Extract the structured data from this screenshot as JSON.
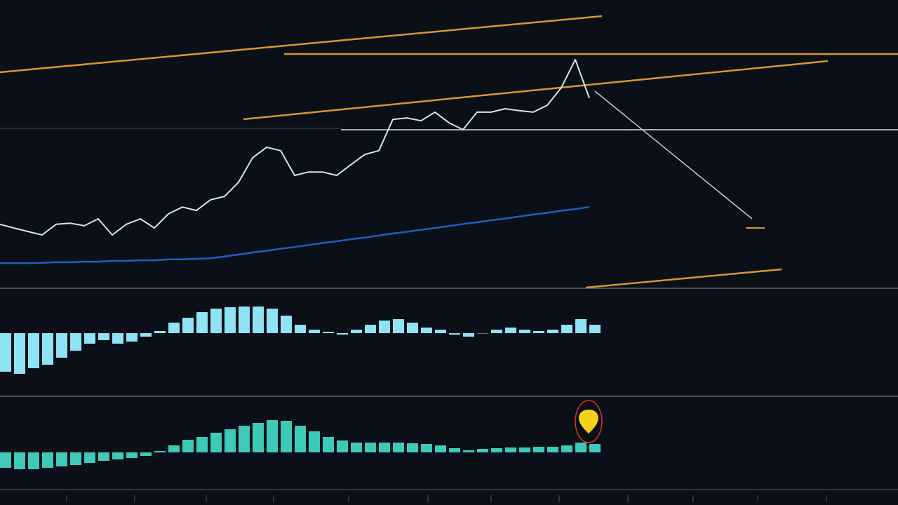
{
  "chart_data": [
    {
      "type": "line",
      "xlim": [
        0,
        64
      ],
      "ylim": [
        0,
        100
      ],
      "x": [
        0,
        1,
        2,
        3,
        4,
        5,
        6,
        7,
        8,
        9,
        10,
        11,
        12,
        13,
        14,
        15,
        16,
        17,
        18,
        19,
        20,
        21,
        22,
        23,
        24,
        25,
        26,
        27,
        28,
        29,
        30,
        31,
        32,
        33,
        34,
        35,
        36,
        37,
        38,
        39,
        40,
        41,
        42
      ],
      "series": [
        {
          "color": "#cfe8f0",
          "values": [
            22,
            20.7,
            19.5,
            18.3,
            22,
            22.4,
            21.5,
            23.9,
            18.3,
            22,
            23.9,
            20.7,
            25.6,
            28,
            26.8,
            30.5,
            31.7,
            36.6,
            45.1,
            48.8,
            47.6,
            39,
            40.2,
            40.2,
            39,
            42.7,
            46.3,
            47.6,
            58.5,
            59,
            58,
            61,
            57.3,
            54.9,
            61,
            61,
            62.2,
            61.5,
            61,
            63.4,
            69.5,
            79.3,
            65.9
          ]
        },
        {
          "color": "#1f5fbf",
          "values": [
            8.5,
            8.5,
            8.5,
            8.6,
            8.8,
            8.8,
            9,
            9,
            9.3,
            9.3,
            9.5,
            9.5,
            9.8,
            9.8,
            10,
            10.2,
            10.8,
            11.5,
            12.2,
            12.8,
            13.5,
            14.1,
            14.8,
            15.5,
            16.1,
            16.8,
            17.4,
            18.1,
            18.8,
            19.4,
            20.1,
            20.7,
            21.4,
            22.1,
            22.7,
            23.4,
            24,
            24.7,
            25.4,
            26,
            26.7,
            27.3,
            28
          ]
        }
      ]
    },
    {
      "type": "bar",
      "xlim": [
        0,
        64
      ],
      "ylim": [
        -90,
        63
      ],
      "color": "#8fe3f5",
      "x": [
        0,
        1,
        2,
        3,
        4,
        5,
        6,
        7,
        8,
        9,
        10,
        11,
        12,
        13,
        14,
        15,
        16,
        17,
        18,
        19,
        20,
        21,
        22,
        23,
        24,
        25,
        26,
        27,
        28,
        29,
        30,
        31,
        32,
        33,
        34,
        35,
        36,
        37,
        38,
        39,
        40,
        41,
        42
      ],
      "values": [
        -55,
        -58,
        -50,
        -45,
        -35,
        -25,
        -15,
        -10,
        -15,
        -12,
        -5,
        3,
        15,
        22,
        30,
        35,
        37,
        38,
        38,
        35,
        25,
        12,
        5,
        2,
        -2,
        5,
        12,
        18,
        20,
        15,
        8,
        5,
        -2,
        -5,
        0,
        5,
        8,
        5,
        3,
        5,
        12,
        20,
        12
      ]
    },
    {
      "type": "bar",
      "xlim": [
        0,
        64
      ],
      "ylim": [
        -53,
        79
      ],
      "color": "#3fc9b8",
      "x": [
        0,
        1,
        2,
        3,
        4,
        5,
        6,
        7,
        8,
        9,
        10,
        11,
        12,
        13,
        14,
        15,
        16,
        17,
        18,
        19,
        20,
        21,
        22,
        23,
        24,
        25,
        26,
        27,
        28,
        29,
        30,
        31,
        32,
        33,
        34,
        35,
        36,
        37,
        38,
        39,
        40,
        41,
        42
      ],
      "values": [
        -22,
        -24,
        -24,
        -22,
        -20,
        -18,
        -15,
        -12,
        -10,
        -8,
        -5,
        2,
        10,
        18,
        22,
        28,
        33,
        38,
        42,
        46,
        45,
        38,
        30,
        22,
        17,
        14,
        14,
        14,
        14,
        13,
        12,
        10,
        6,
        3,
        5,
        6,
        7,
        7,
        8,
        8,
        10,
        14,
        12
      ]
    }
  ]
}
